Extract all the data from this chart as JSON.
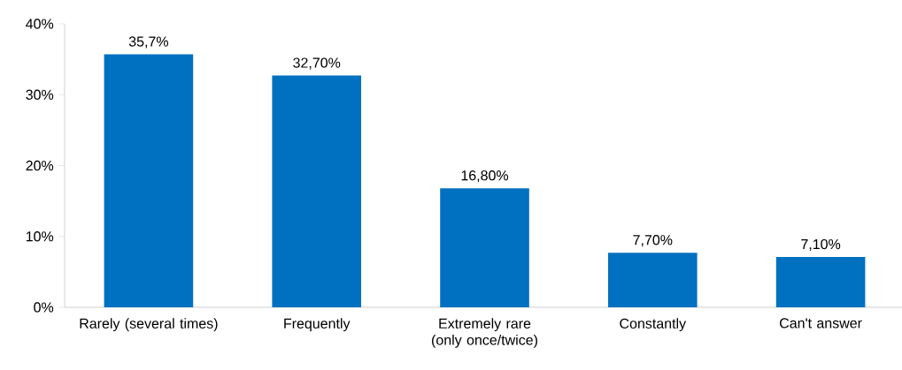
{
  "chart_data": {
    "type": "bar",
    "categories": [
      "Rarely (several times)",
      "Frequently",
      "Extremely rare (only once/twice)",
      "Constantly",
      "Can't answer"
    ],
    "values": [
      35.7,
      32.7,
      16.8,
      7.7,
      7.1
    ],
    "value_labels": [
      "35,7%",
      "32,70%",
      "16,80%",
      "7,70%",
      "7,10%"
    ],
    "color": "#0070c0",
    "ylim": [
      0,
      40
    ],
    "yticks": [
      {
        "value": 0,
        "label": "0%"
      },
      {
        "value": 10,
        "label": "10%"
      },
      {
        "value": 20,
        "label": "20%"
      },
      {
        "value": 30,
        "label": "30%"
      },
      {
        "value": 40,
        "label": "40%"
      }
    ]
  }
}
